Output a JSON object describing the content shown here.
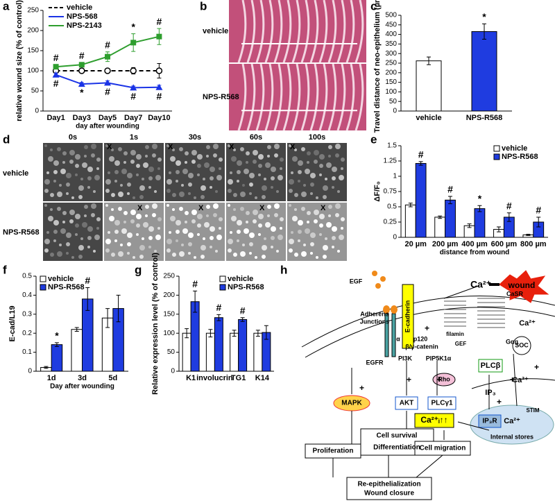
{
  "panel_labels": [
    "a",
    "b",
    "c",
    "d",
    "e",
    "f",
    "g",
    "h"
  ],
  "chart_data": [
    {
      "type": "line",
      "categories": [
        "Day1",
        "Day3",
        "Day5",
        "Day7",
        "Day10"
      ],
      "series": [
        {
          "name": "vehicle",
          "color": "#000000",
          "marker": "circle",
          "dashed": true,
          "values": [
            100,
            100,
            100,
            100,
            100
          ],
          "errors": [
            3,
            3,
            4,
            8,
            18
          ]
        },
        {
          "name": "NPS-568",
          "color": "#1a33e6",
          "marker": "triangle",
          "dashed": false,
          "values": [
            90,
            67,
            70,
            58,
            59
          ],
          "errors": [
            4,
            4,
            5,
            4,
            5
          ]
        },
        {
          "name": "NPS-2143",
          "color": "#2e9e2e",
          "marker": "square",
          "dashed": false,
          "values": [
            110,
            115,
            135,
            170,
            185
          ],
          "errors": [
            5,
            5,
            12,
            22,
            20
          ]
        }
      ],
      "annotations_above": [
        "#",
        "#",
        "#",
        "*",
        "#"
      ],
      "annotations_below": [
        "#",
        "*",
        "#",
        "#",
        "#"
      ],
      "ylabel": "relative wound size (% of control)",
      "xlabel": "day after wounding",
      "ylim": [
        0,
        250
      ],
      "yticks": [
        0,
        50,
        100,
        150,
        200,
        250
      ],
      "legend": "upper left"
    },
    {
      "type": "bar",
      "categories": [
        "vehicle",
        "NPS-R568"
      ],
      "values": [
        262,
        415
      ],
      "errors": [
        20,
        40
      ],
      "colors": [
        "#ffffff",
        "#1f3ce0"
      ],
      "annotations": [
        null,
        "*"
      ],
      "ylabel": "Travel distance of neo-epithelium (µm)",
      "ylim": [
        0,
        500
      ],
      "yticks": [
        0,
        50,
        100,
        150,
        200,
        250,
        300,
        350,
        400,
        450,
        500
      ]
    },
    {
      "type": "bar",
      "categories": [
        "20 µm",
        "200 µm",
        "400 µm",
        "600 µm",
        "800 µm"
      ],
      "series": [
        {
          "name": "vehicle",
          "color": "#ffffff",
          "values": [
            0.53,
            0.33,
            0.19,
            0.13,
            0.04
          ],
          "errors": [
            0.03,
            0.02,
            0.03,
            0.04,
            0.01
          ]
        },
        {
          "name": "NPS-R568",
          "color": "#1f3ce0",
          "values": [
            1.21,
            0.61,
            0.47,
            0.33,
            0.25
          ],
          "errors": [
            0.03,
            0.06,
            0.05,
            0.07,
            0.08
          ]
        }
      ],
      "annotations": [
        "#",
        "#",
        "*",
        "#",
        "#"
      ],
      "ylabel": "ΔF/F₀",
      "xlabel": "distance from wound",
      "ylim": [
        0,
        1.5
      ],
      "yticks": [
        0,
        0.25,
        0.5,
        0.75,
        1,
        1.25,
        1.5
      ],
      "legend": "upper right"
    },
    {
      "type": "bar",
      "categories": [
        "1d",
        "3d",
        "5d"
      ],
      "series": [
        {
          "name": "vehicle",
          "color": "#ffffff",
          "values": [
            0.02,
            0.22,
            0.28
          ],
          "errors": [
            0.005,
            0.01,
            0.05
          ]
        },
        {
          "name": "NPS-R568",
          "color": "#1f3ce0",
          "values": [
            0.14,
            0.38,
            0.33
          ],
          "errors": [
            0.01,
            0.06,
            0.07
          ]
        }
      ],
      "annotations": [
        "*",
        "#",
        null
      ],
      "ylabel": "E-cad/L19",
      "xlabel": "Day after wounding",
      "ylim": [
        0,
        0.5
      ],
      "yticks": [
        0,
        0.1,
        0.2,
        0.3,
        0.4,
        0.5
      ],
      "legend": "upper left"
    },
    {
      "type": "bar",
      "categories": [
        "K1",
        "involucrin",
        "TG1",
        "K14"
      ],
      "series": [
        {
          "name": "vehicle",
          "color": "#ffffff",
          "values": [
            100,
            100,
            100,
            100
          ],
          "errors": [
            12,
            10,
            8,
            8
          ]
        },
        {
          "name": "NPS-R568",
          "color": "#1f3ce0",
          "values": [
            183,
            141,
            136,
            102
          ],
          "errors": [
            28,
            8,
            5,
            18
          ]
        }
      ],
      "annotations": [
        "#",
        "#",
        "#",
        null
      ],
      "ylabel": "Relative expression level (% of control)",
      "ylim": [
        0,
        250
      ],
      "yticks": [
        0,
        50,
        100,
        150,
        200,
        250
      ],
      "legend": "upper right"
    }
  ],
  "images": {
    "b": {
      "labels": [
        "vehicle",
        "NPS-R568"
      ]
    },
    "d": {
      "times": [
        "0s",
        "1s",
        "30s",
        "60s",
        "100s"
      ],
      "rows": [
        "vehicle",
        "NPS-R568"
      ],
      "marker": "X"
    }
  },
  "diagram": {
    "plus": "+",
    "nodes": [
      {
        "label": "wound"
      },
      {
        "label": "Ca²⁺"
      },
      {
        "label": "CaSR"
      },
      {
        "label": "EGF"
      },
      {
        "label": "Adherens"
      },
      {
        "label": "Junctions"
      },
      {
        "label": "E-cadherin"
      },
      {
        "label": "EGFR"
      },
      {
        "label": "α"
      },
      {
        "label": "p120"
      },
      {
        "label": "β/γ-catenin"
      },
      {
        "label": "PI3K"
      },
      {
        "label": "PIP5K1α"
      },
      {
        "label": "Rho"
      },
      {
        "label": "filamin"
      },
      {
        "label": "GEF"
      },
      {
        "label": "Gαq"
      },
      {
        "label": "Ca²⁺"
      },
      {
        "label": "SOC"
      },
      {
        "label": "PLCβ"
      },
      {
        "label": "IP₃"
      },
      {
        "label": "Ca²⁺"
      },
      {
        "label": "STIM"
      },
      {
        "label": "Ca²⁺"
      },
      {
        "label": "Internal stores"
      },
      {
        "label": "IP₃R"
      },
      {
        "label": "Ca²⁺ᵢ↑↑"
      },
      {
        "label": "MAPK"
      },
      {
        "label": "AKT"
      },
      {
        "label": "PLCγ1"
      },
      {
        "label": "Cell survival"
      },
      {
        "label": "Differentiation"
      },
      {
        "label": "Proliferation"
      },
      {
        "label": "Cell migration"
      },
      {
        "label": "Re-epithelialization"
      },
      {
        "label": "Wound closure"
      }
    ]
  }
}
